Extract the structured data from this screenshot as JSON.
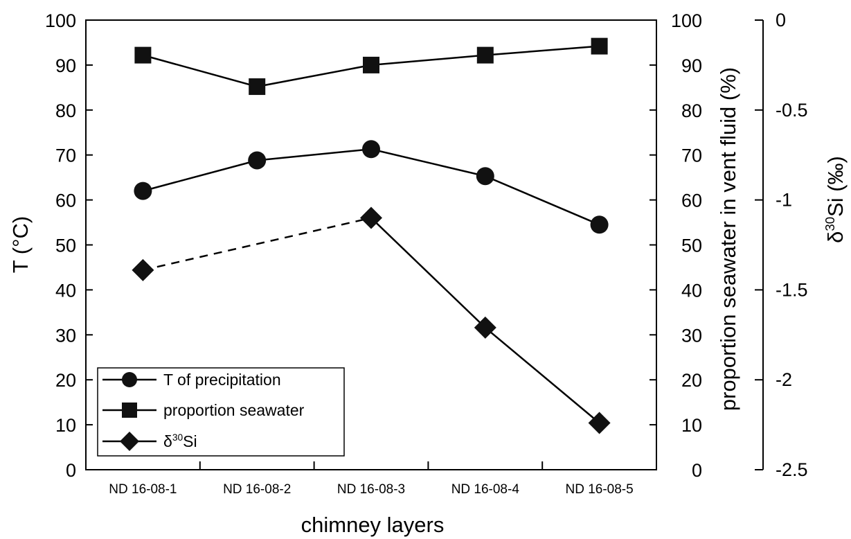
{
  "chart_data": {
    "type": "line",
    "categories": [
      "ND 16-08-1",
      "ND 16-08-2",
      "ND 16-08-3",
      "ND 16-08-4",
      "ND 16-08-5"
    ],
    "xlabel": "chimney layers",
    "left_axis": {
      "label_prefix": "T (°C)",
      "ylim": [
        0,
        100
      ],
      "ticks": [
        0,
        10,
        20,
        30,
        40,
        50,
        60,
        70,
        80,
        90,
        100
      ]
    },
    "right_axis": {
      "label": "proportion seawater in vent fluid (%)",
      "ylim": [
        0,
        100
      ],
      "ticks": [
        0,
        10,
        20,
        30,
        40,
        50,
        60,
        70,
        80,
        90,
        100
      ]
    },
    "far_right_axis": {
      "label_delta": "δ",
      "label_sup": "30",
      "label_rest": "Si (‰)",
      "ylim": [
        -2.5,
        0
      ],
      "ticks": [
        0,
        -0.5,
        -1,
        -1.5,
        -2,
        -2.5
      ],
      "tick_labels": [
        "0",
        "-0.5",
        "-1",
        "-1.5",
        "-2",
        "-2.5"
      ]
    },
    "series": [
      {
        "name": "T of precipitation",
        "marker": "circle",
        "axis": "left",
        "values": [
          62,
          68.8,
          71.3,
          65.3,
          54.5
        ]
      },
      {
        "name": "proportion seawater",
        "marker": "square",
        "axis": "right",
        "values": [
          92.2,
          85.2,
          90.0,
          92.2,
          94.2
        ]
      },
      {
        "name_delta": "δ",
        "name_sup": "30",
        "name_rest": "Si",
        "marker": "diamond",
        "axis": "far_right",
        "values": [
          -1.39,
          null,
          -1.1,
          -1.71,
          -2.24
        ],
        "dashed_segment": [
          0,
          2
        ]
      }
    ],
    "grid": false,
    "legend_position": "bottom-left"
  }
}
